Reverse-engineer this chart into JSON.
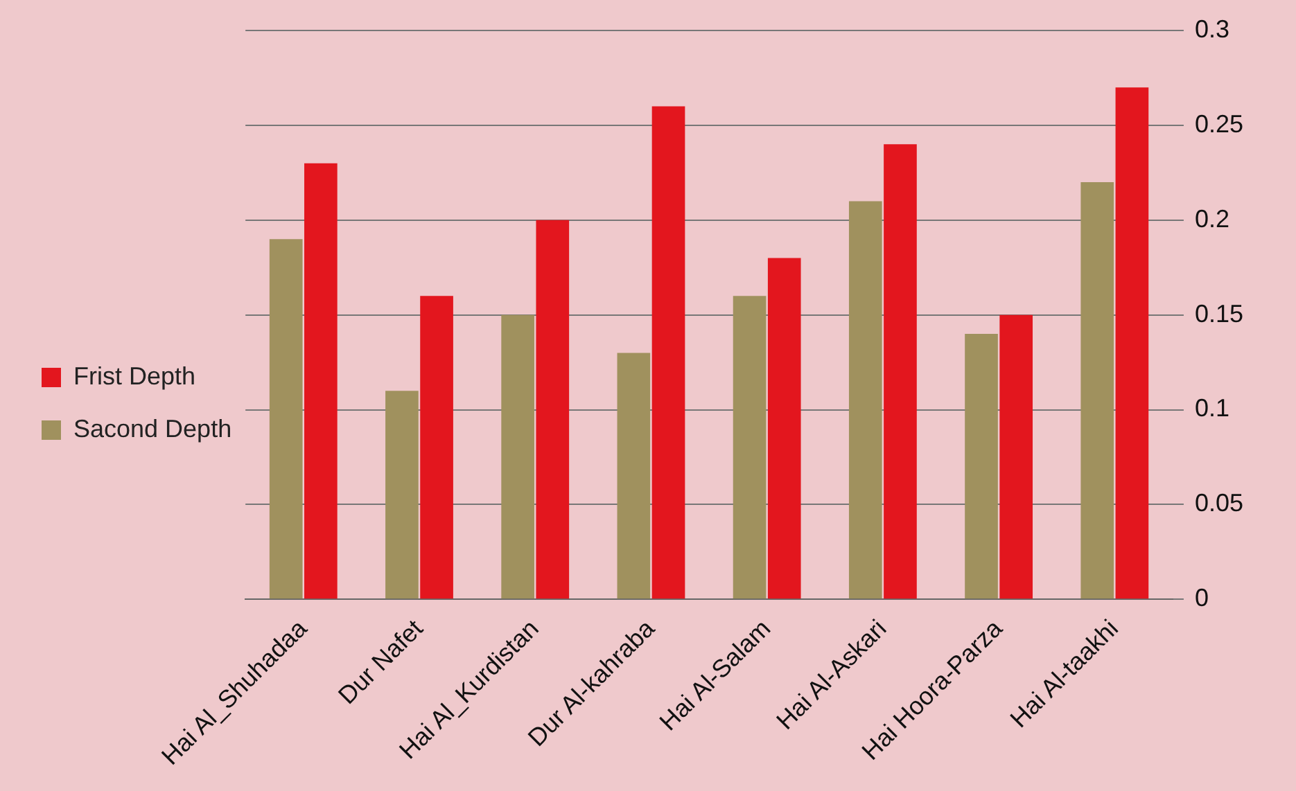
{
  "chart_data": {
    "type": "bar",
    "categories": [
      "Hai Al_Shuhadaa",
      "Dur Nafet",
      "Hai Al_Kurdistan",
      "Dur Al-kahraba",
      "Hai Al-Salam",
      "Hai Al-Askari",
      "Hai Hoora-Parza",
      "Hai Al-taakhi"
    ],
    "series": [
      {
        "name": "Sacond Depth",
        "color": "#a0915e",
        "values": [
          0.19,
          0.11,
          0.15,
          0.13,
          0.16,
          0.21,
          0.14,
          0.22
        ]
      },
      {
        "name": "Frist Depth",
        "color": "#e3161e",
        "values": [
          0.23,
          0.16,
          0.2,
          0.26,
          0.18,
          0.24,
          0.15,
          0.27
        ]
      }
    ],
    "ylim": [
      0,
      0.3
    ],
    "yticks": [
      0,
      0.05,
      0.1,
      0.15,
      0.2,
      0.25,
      0.3
    ],
    "grid": "y",
    "legend": "left"
  }
}
